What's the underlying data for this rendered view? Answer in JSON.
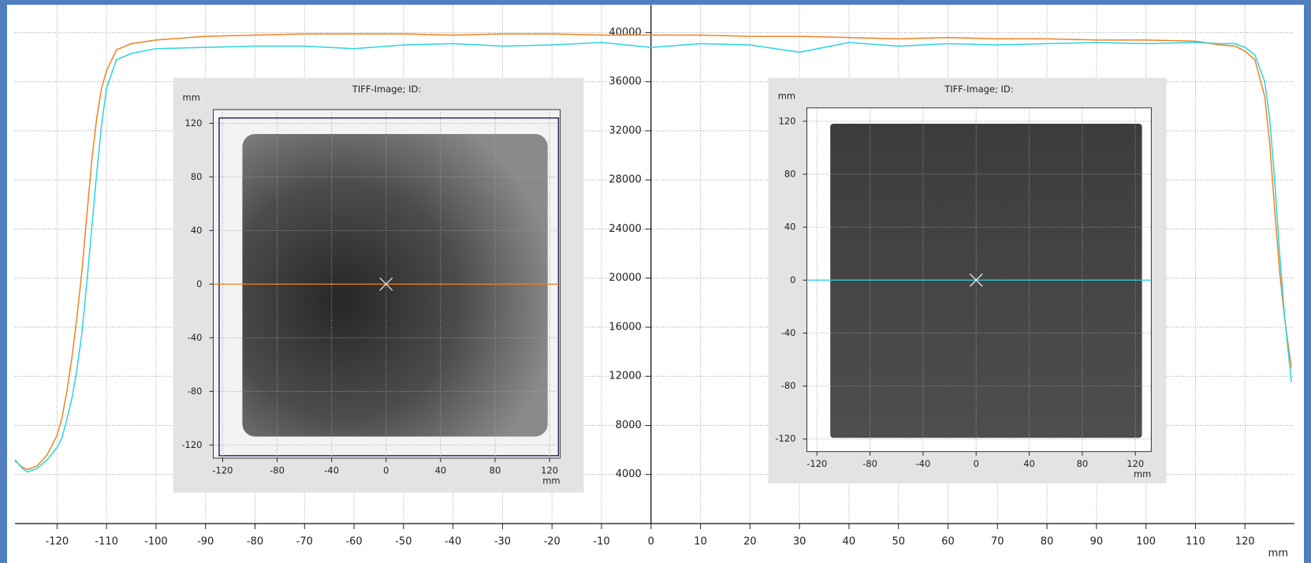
{
  "chart_data": [
    {
      "type": "line",
      "xlabel": "mm",
      "xlim": [
        -128.5,
        130
      ],
      "ylim": [
        0,
        42250
      ],
      "xticks": [
        -120,
        -110,
        -100,
        -90,
        -80,
        -70,
        -60,
        -50,
        -40,
        -30,
        -20,
        -10,
        0,
        10,
        20,
        30,
        40,
        50,
        60,
        70,
        80,
        90,
        100,
        110,
        120
      ],
      "yticks": [
        4000,
        8000,
        12000,
        16000,
        20000,
        24000,
        28000,
        32000,
        36000,
        40000
      ],
      "grid": true,
      "x": [
        -128.5,
        -127,
        -126,
        -124,
        -122,
        -120,
        -119,
        -118,
        -117,
        -116,
        -115,
        -114,
        -113,
        -112,
        -111,
        -110,
        -108,
        -105,
        -100,
        -90,
        -80,
        -70,
        -60,
        -50,
        -40,
        -30,
        -20,
        -10,
        0,
        10,
        20,
        30,
        40,
        50,
        60,
        70,
        80,
        90,
        100,
        110,
        115,
        118,
        120,
        122,
        124,
        125,
        126,
        127,
        128,
        129,
        129.4
      ],
      "series": [
        {
          "color": "#f0821e",
          "values": [
            5100,
            4600,
            4400,
            4700,
            5600,
            7200,
            8600,
            10800,
            13500,
            16800,
            20500,
            25000,
            29500,
            33000,
            35500,
            36900,
            38600,
            39100,
            39400,
            39700,
            39800,
            39900,
            39900,
            39900,
            39800,
            39900,
            39900,
            39800,
            39800,
            39800,
            39700,
            39700,
            39600,
            39500,
            39600,
            39500,
            39500,
            39400,
            39400,
            39300,
            39000,
            38900,
            38500,
            37800,
            34800,
            31000,
            25600,
            20500,
            16800,
            13800,
            12700
          ]
        },
        {
          "color": "#2ad4e0",
          "values": [
            5200,
            4500,
            4200,
            4500,
            5200,
            6200,
            7000,
            8500,
            10200,
            12500,
            15500,
            19500,
            24000,
            28500,
            32500,
            35500,
            37800,
            38300,
            38700,
            38800,
            38900,
            38900,
            38700,
            39000,
            39100,
            38900,
            39000,
            39200,
            38800,
            39100,
            39000,
            38400,
            39200,
            38900,
            39100,
            39000,
            39100,
            39200,
            39100,
            39200,
            39100,
            39100,
            38800,
            38200,
            36000,
            33000,
            28000,
            22000,
            17000,
            13000,
            11500
          ]
        }
      ]
    },
    {
      "type": "image",
      "title": "TIFF-Image; ID:",
      "xlabel": "mm",
      "ylabel": "mm",
      "xlim": [
        -126.9,
        127.8
      ],
      "ylim": [
        -129.8,
        130.2
      ],
      "xticks": [
        -120,
        -80,
        -40,
        0,
        40,
        80,
        120
      ],
      "yticks": [
        -120,
        -80,
        -40,
        0,
        40,
        80,
        120
      ],
      "grid": true,
      "profile_line": {
        "y": 0,
        "color": "#f0821e"
      }
    },
    {
      "type": "image",
      "title": "TIFF-Image; ID:",
      "xlabel": "mm",
      "ylabel": "mm",
      "xlim": [
        -127.6,
        132
      ],
      "ylim": [
        -129.5,
        130.1
      ],
      "xticks": [
        -120,
        -80,
        -40,
        0,
        40,
        80,
        120
      ],
      "yticks": [
        -120,
        -80,
        -40,
        0,
        40,
        80,
        120
      ],
      "grid": true,
      "profile_line": {
        "y": 0,
        "color": "#2ad4e0"
      }
    }
  ]
}
